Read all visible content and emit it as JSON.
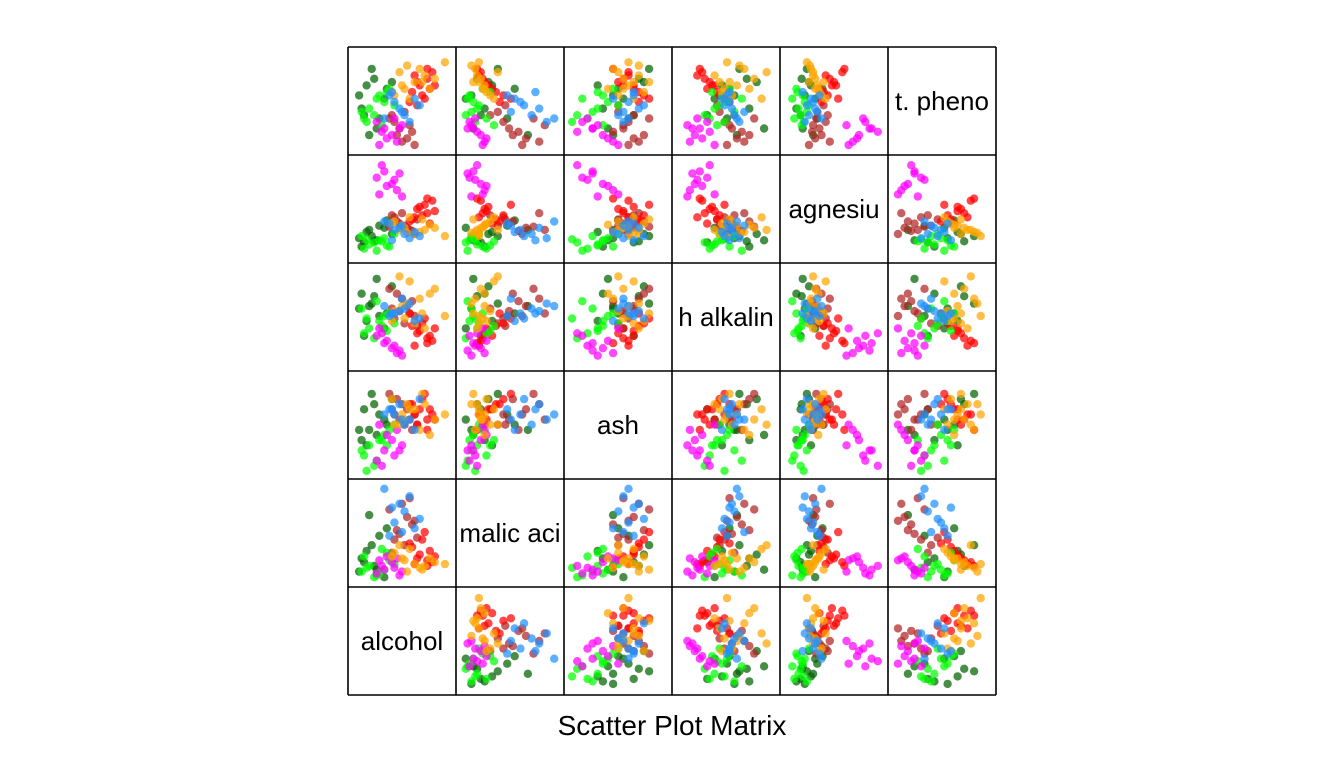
{
  "chart_data": {
    "type": "scatter",
    "subtype": "scatter-plot-matrix",
    "title": "Scatter Plot Matrix",
    "variables": [
      "alcohol",
      "malic acid",
      "ash",
      "ash alkalinity",
      "magnesium",
      "tot. phenols"
    ],
    "diagonal_labels": [
      "alcohol",
      "malic aci",
      "ash",
      "h alkalin",
      "agnesiu",
      "t. pheno"
    ],
    "axis_ticks": "none",
    "grid": false,
    "legend": "none",
    "point_style": "filled circles, semi-transparent",
    "group_colors": [
      "#006400",
      "#b22222",
      "#ff0000",
      "#00ff00",
      "#ff00ff",
      "#ffa500",
      "#1e90ff"
    ],
    "variable_ranges": {
      "alcohol": [
        11.0,
        14.8
      ],
      "malic acid": [
        0.7,
        5.8
      ],
      "ash": [
        1.36,
        3.23
      ],
      "ash alkalinity": [
        10.6,
        30.0
      ],
      "magnesium": [
        70,
        162
      ],
      "tot. phenols": [
        0.98,
        3.88
      ]
    },
    "series": [
      {
        "color": "#006400",
        "points": [
          [
            11.2,
            1.2,
            2.2,
            22.0,
            88,
            2.6
          ],
          [
            11.5,
            2.3,
            1.9,
            19.5,
            94,
            2.9
          ],
          [
            11.8,
            1.5,
            2.7,
            24.5,
            85,
            3.1
          ],
          [
            12.0,
            3.1,
            2.5,
            20.5,
            100,
            1.9
          ],
          [
            11.3,
            1.9,
            2.0,
            25.0,
            80,
            2.2
          ],
          [
            12.2,
            0.9,
            2.4,
            18.0,
            98,
            2.5
          ],
          [
            11.7,
            2.6,
            2.9,
            23.0,
            90,
            3.4
          ],
          [
            11.9,
            1.3,
            2.1,
            28.0,
            86,
            1.6
          ],
          [
            12.3,
            3.5,
            2.3,
            21.0,
            105,
            2.8
          ],
          [
            11.4,
            1.7,
            2.6,
            16.5,
            84,
            2.0
          ],
          [
            12.5,
            2.1,
            2.8,
            26.5,
            92,
            3.0
          ],
          [
            11.6,
            4.2,
            2.2,
            22.5,
            96,
            1.4
          ]
        ]
      },
      {
        "color": "#b22222",
        "points": [
          [
            12.8,
            3.2,
            2.4,
            21.5,
            102,
            1.6
          ],
          [
            13.1,
            4.1,
            2.6,
            22.5,
            98,
            1.3
          ],
          [
            12.6,
            2.9,
            2.5,
            20.0,
            108,
            1.8
          ],
          [
            13.3,
            3.7,
            2.2,
            23.5,
            95,
            1.5
          ],
          [
            12.9,
            4.8,
            2.7,
            24.0,
            112,
            1.2
          ],
          [
            13.0,
            2.6,
            2.3,
            19.0,
            100,
            2.1
          ],
          [
            12.7,
            3.4,
            2.8,
            25.0,
            104,
            1.4
          ],
          [
            13.2,
            5.1,
            2.4,
            21.0,
            96,
            1.7
          ],
          [
            12.5,
            2.2,
            2.6,
            22.0,
            110,
            2.0
          ],
          [
            13.4,
            3.9,
            2.5,
            20.5,
            92,
            1.1
          ],
          [
            12.4,
            4.5,
            2.9,
            26.0,
            99,
            1.9
          ],
          [
            13.5,
            3.0,
            2.3,
            18.5,
            106,
            2.3
          ]
        ]
      },
      {
        "color": "#ff0000",
        "points": [
          [
            13.6,
            2.1,
            2.6,
            17.5,
            118,
            2.9
          ],
          [
            13.9,
            1.8,
            2.4,
            16.0,
            112,
            3.1
          ],
          [
            13.3,
            2.5,
            2.7,
            18.5,
            106,
            2.7
          ],
          [
            14.1,
            1.7,
            2.5,
            15.5,
            124,
            3.3
          ],
          [
            13.7,
            2.9,
            2.8,
            19.0,
            110,
            2.6
          ],
          [
            13.5,
            1.9,
            2.3,
            17.0,
            116,
            3.0
          ],
          [
            14.0,
            2.3,
            2.6,
            16.5,
            102,
            2.8
          ],
          [
            13.8,
            3.3,
            2.9,
            20.0,
            120,
            2.5
          ],
          [
            13.4,
            1.6,
            2.5,
            14.5,
            108,
            3.2
          ],
          [
            14.2,
            2.0,
            2.4,
            18.0,
            114,
            2.9
          ],
          [
            13.2,
            2.7,
            2.7,
            21.0,
            104,
            2.4
          ],
          [
            13.9,
            1.5,
            2.2,
            15.0,
            126,
            3.4
          ]
        ]
      },
      {
        "color": "#00ff00",
        "points": [
          [
            11.6,
            1.5,
            1.9,
            18.0,
            82,
            2.2
          ],
          [
            12.0,
            1.1,
            2.0,
            19.5,
            86,
            2.6
          ],
          [
            11.4,
            2.0,
            1.7,
            17.0,
            78,
            1.9
          ],
          [
            12.2,
            1.3,
            2.1,
            20.5,
            88,
            2.4
          ],
          [
            11.8,
            0.9,
            1.5,
            16.0,
            84,
            2.0
          ],
          [
            12.4,
            1.8,
            2.2,
            21.0,
            80,
            2.8
          ],
          [
            11.3,
            1.2,
            1.8,
            22.0,
            90,
            2.1
          ],
          [
            12.1,
            2.4,
            2.0,
            18.5,
            85,
            1.7
          ],
          [
            11.9,
            1.0,
            1.6,
            23.5,
            76,
            2.5
          ],
          [
            12.6,
            1.6,
            2.3,
            19.0,
            92,
            2.3
          ],
          [
            11.5,
            1.4,
            1.4,
            20.0,
            87,
            1.8
          ],
          [
            12.3,
            2.2,
            1.9,
            17.5,
            81,
            2.7
          ]
        ]
      },
      {
        "color": "#ff00ff",
        "points": [
          [
            12.2,
            1.3,
            1.8,
            15.0,
            152,
            1.6
          ],
          [
            12.5,
            1.7,
            2.0,
            14.0,
            140,
            1.4
          ],
          [
            11.9,
            1.1,
            1.6,
            16.5,
            146,
            1.8
          ],
          [
            12.7,
            1.9,
            2.2,
            13.0,
            134,
            1.2
          ],
          [
            12.1,
            1.5,
            1.5,
            17.0,
            158,
            1.5
          ],
          [
            12.9,
            1.2,
            1.9,
            12.5,
            128,
            1.7
          ],
          [
            12.3,
            2.0,
            2.1,
            15.5,
            138,
            1.3
          ],
          [
            12.6,
            1.4,
            1.7,
            14.5,
            144,
            1.9
          ],
          [
            12.0,
            1.8,
            2.3,
            18.0,
            130,
            1.1
          ],
          [
            12.8,
            1.0,
            1.8,
            13.5,
            150,
            1.6
          ]
        ]
      },
      {
        "color": "#ffa500",
        "points": [
          [
            13.0,
            1.8,
            2.4,
            20.0,
            98,
            2.8
          ],
          [
            13.4,
            1.6,
            2.6,
            19.0,
            92,
            3.0
          ],
          [
            12.6,
            2.2,
            2.3,
            21.5,
            104,
            2.6
          ],
          [
            13.8,
            1.5,
            2.7,
            18.0,
            96,
            3.2
          ],
          [
            12.9,
            1.9,
            2.5,
            22.5,
            100,
            2.9
          ],
          [
            13.6,
            1.4,
            2.2,
            24.0,
            94,
            3.4
          ],
          [
            12.5,
            2.0,
            2.8,
            19.5,
            102,
            2.7
          ],
          [
            14.2,
            1.7,
            2.4,
            26.0,
            98,
            3.1
          ],
          [
            13.2,
            2.4,
            2.6,
            27.5,
            108,
            2.5
          ],
          [
            14.6,
            1.6,
            2.5,
            20.5,
            90,
            3.6
          ],
          [
            12.8,
            2.6,
            2.3,
            28.5,
            96,
            3.3
          ],
          [
            13.7,
            1.3,
            2.9,
            21.0,
            106,
            3.0
          ],
          [
            14.0,
            1.9,
            2.1,
            25.0,
            101,
            2.8
          ],
          [
            13.1,
            1.2,
            2.7,
            23.0,
            93,
            3.5
          ]
        ]
      },
      {
        "color": "#1e90ff",
        "points": [
          [
            12.6,
            3.8,
            2.5,
            21.0,
            96,
            2.4
          ],
          [
            13.0,
            4.4,
            2.3,
            22.0,
            92,
            2.0
          ],
          [
            12.4,
            3.1,
            2.6,
            20.5,
            102,
            2.6
          ],
          [
            13.2,
            5.2,
            2.4,
            23.0,
            88,
            1.8
          ],
          [
            12.8,
            4.8,
            2.7,
            21.5,
            98,
            2.2
          ],
          [
            13.4,
            3.5,
            2.2,
            19.5,
            94,
            2.5
          ],
          [
            12.2,
            5.6,
            2.5,
            22.5,
            104,
            1.9
          ],
          [
            13.6,
            4.0,
            2.8,
            20.0,
            90,
            2.3
          ],
          [
            12.9,
            3.3,
            2.4,
            24.0,
            100,
            2.1
          ],
          [
            12.5,
            4.6,
            2.6,
            21.0,
            86,
            2.7
          ]
        ]
      }
    ]
  }
}
